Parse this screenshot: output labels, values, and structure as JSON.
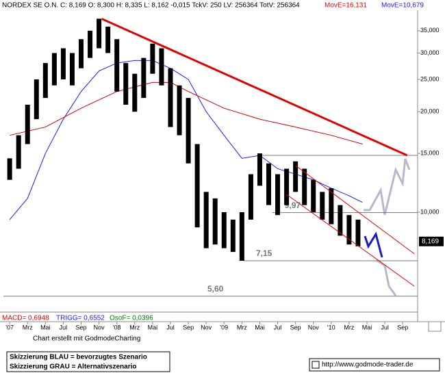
{
  "chart_data": {
    "type": "hilo",
    "header": "NORDEX SE O.N. C: 8,169 O: 8,300 H: 8,335 L: 8,162 -0,015 TckV: 250 LV: 256364 TotV: 256364",
    "header_ma_red": "MovE=16,131",
    "header_ma_blue": "MovE=10,679",
    "credit": "Chart erstellt mit GodmodeCharting",
    "legend_lines": [
      "Skizzierung BLAU = bevorzugtes Szenario",
      "Skizzierung GRAU = Alternativszenario"
    ],
    "url": "http://www.godmode-trader.de",
    "indicator": {
      "macd": "MACD= 0,6948",
      "trigg": "TRIGG= 0,6552",
      "osof": "OsoF= 0,0396"
    },
    "log_scale": true,
    "xlim": [
      -0.7,
      45.67
    ],
    "ylim": [
      5.04,
      40.3
    ],
    "xticks": [
      {
        "value": 0,
        "label": "'07"
      },
      {
        "value": 2,
        "label": "Mrz"
      },
      {
        "value": 4,
        "label": "Mai"
      },
      {
        "value": 6,
        "label": "Jul"
      },
      {
        "value": 8,
        "label": "Sep"
      },
      {
        "value": 10,
        "label": "Nov"
      },
      {
        "value": 12,
        "label": "'08"
      },
      {
        "value": 14,
        "label": "Mrz"
      },
      {
        "value": 16,
        "label": "Mai"
      },
      {
        "value": 18,
        "label": "Jul"
      },
      {
        "value": 20,
        "label": "Sep"
      },
      {
        "value": 22,
        "label": "Nov"
      },
      {
        "value": 24,
        "label": "'09"
      },
      {
        "value": 26,
        "label": "Mrz"
      },
      {
        "value": 28,
        "label": "Mai"
      },
      {
        "value": 30,
        "label": "Jul"
      },
      {
        "value": 32,
        "label": "Sep"
      },
      {
        "value": 34,
        "label": "Nov"
      },
      {
        "value": 36,
        "label": "'10"
      },
      {
        "value": 38,
        "label": "Mrz"
      },
      {
        "value": 40,
        "label": "Mai"
      },
      {
        "value": 42,
        "label": "Jul"
      },
      {
        "value": 44,
        "label": "Sep"
      }
    ],
    "yticks": [
      {
        "value": 10,
        "label": "10,000"
      },
      {
        "value": 15,
        "label": "15,000"
      },
      {
        "value": 20,
        "label": "20,000"
      },
      {
        "value": 25,
        "label": "25,000"
      },
      {
        "value": 30,
        "label": "30,000"
      },
      {
        "value": 35,
        "label": "35,000"
      }
    ],
    "bar_color": "#000000",
    "x": [
      0,
      1,
      2,
      3,
      4,
      5,
      6,
      7,
      8,
      9,
      10,
      11,
      12,
      13,
      14,
      15,
      16,
      17,
      18,
      19,
      20,
      21,
      22,
      23,
      24,
      25,
      26,
      27,
      28,
      29,
      30,
      31,
      32,
      33,
      34,
      35,
      36,
      37,
      38,
      39
    ],
    "high": [
      14.5,
      17,
      21,
      25,
      28,
      30,
      31,
      30,
      33,
      35,
      38,
      36,
      33,
      28,
      26,
      29,
      32,
      31,
      27,
      24,
      22,
      16,
      11.5,
      11,
      10,
      9.5,
      10,
      13,
      15,
      14,
      13,
      13.5,
      14.2,
      13.5,
      12.5,
      11.5,
      11.8,
      10.5,
      9.8,
      9.5
    ],
    "low": [
      12.5,
      13.5,
      16,
      19,
      22,
      24,
      25,
      24,
      27,
      29,
      31,
      30,
      23,
      21,
      20,
      22,
      26,
      24,
      18,
      17,
      14,
      9,
      7.8,
      8,
      7.8,
      7.6,
      7.15,
      9.5,
      12,
      10.5,
      9.8,
      10.5,
      11.5,
      10.5,
      10,
      9.5,
      9.2,
      8.5,
      8,
      7.9
    ],
    "series": [
      {
        "name": "MovE=10,679",
        "color": "#1a1aff",
        "x": [
          0,
          2,
          4,
          6,
          8,
          10,
          12,
          14,
          16,
          18,
          20,
          22,
          24,
          26,
          28,
          30,
          32,
          34,
          36,
          38,
          39.5
        ],
        "values": [
          9.5,
          11,
          15,
          19,
          23,
          26.5,
          28,
          28.5,
          28.5,
          27,
          25,
          20,
          17,
          14.5,
          14.8,
          13.5,
          13,
          12.5,
          11.8,
          11.2,
          10.7
        ]
      },
      {
        "name": "MovE=16,131",
        "color": "#cc0000",
        "x": [
          0,
          4,
          8,
          12,
          16,
          18,
          20,
          24,
          28,
          32,
          36,
          39.5
        ],
        "values": [
          17,
          18,
          20.5,
          23,
          24.5,
          24.5,
          23,
          20.5,
          19,
          18,
          17,
          16
        ]
      }
    ],
    "overlays": [
      {
        "color": "#e00000",
        "width": 3,
        "x": [
          10.3,
          44.5
        ],
        "values": [
          38,
          14.8
        ]
      },
      {
        "color": "#e00000",
        "width": 1,
        "x": [
          32,
          45.3
        ],
        "values": [
          13.8,
          7.5
        ]
      },
      {
        "color": "#e00000",
        "width": 1,
        "x": [
          31,
          45.3
        ],
        "values": [
          11.3,
          6.0
        ]
      }
    ],
    "resistance": {
      "from": 28.3,
      "value": 14.8
    },
    "levels": [
      {
        "from": 29.4,
        "value": 9.97,
        "label": "9,97"
      },
      {
        "from": 26.2,
        "value": 7.15,
        "label": "7,15"
      },
      {
        "from": -0.7,
        "value": 5.6,
        "label": "5,60"
      }
    ],
    "last": {
      "value": 8.169,
      "label": "8,169"
    }
  }
}
